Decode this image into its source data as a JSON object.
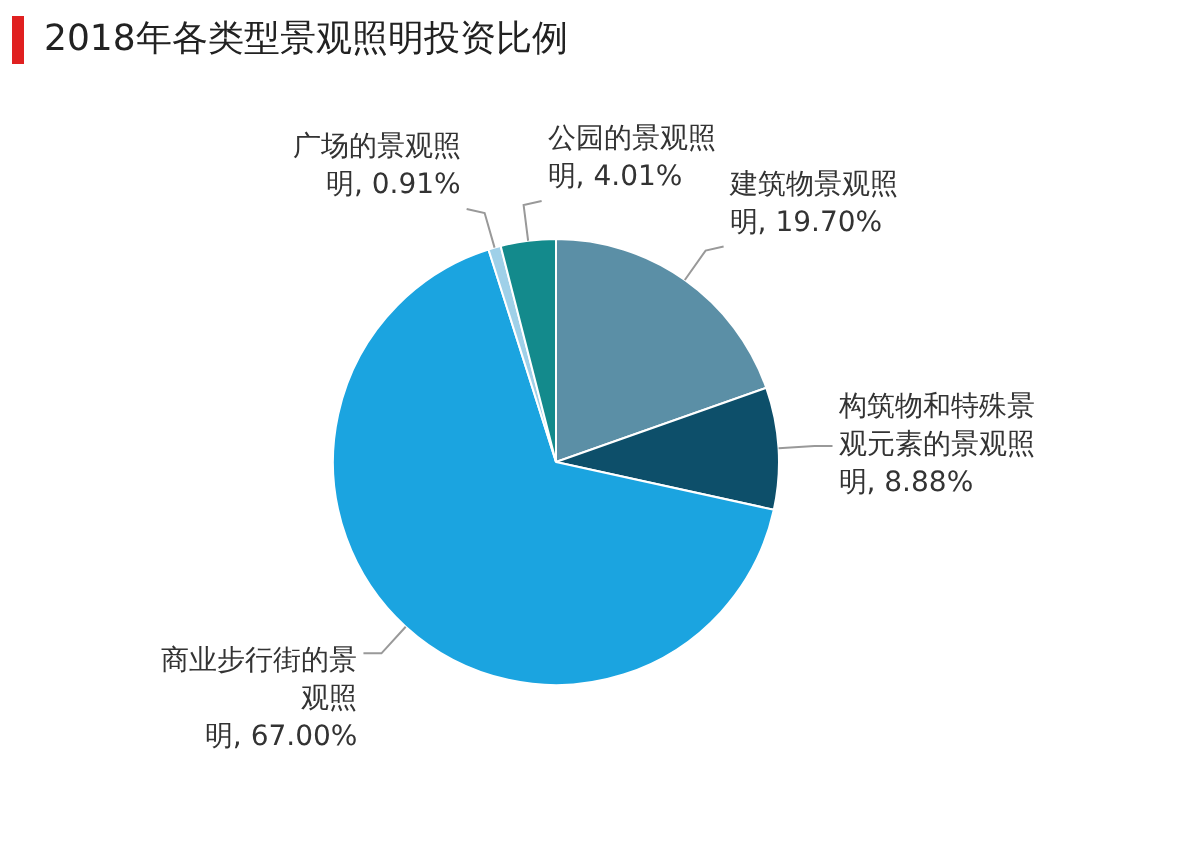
{
  "chart_data": {
    "type": "pie",
    "title": "2018年各类型景观照明投资比例",
    "categories": [
      "建筑物景观照明",
      "构筑物和特殊景观元素的景观照明",
      "商业步行街的景观照明",
      "广场的景观照明",
      "公园的景观照明"
    ],
    "values": [
      19.7,
      8.88,
      67.0,
      0.91,
      4.01
    ],
    "value_labels": [
      "19.70%",
      "8.88%",
      "67.00%",
      "0.91%",
      "4.01%"
    ],
    "colors": [
      "#5b8fa6",
      "#0d4f6a",
      "#1ba4e0",
      "#9fd0e8",
      "#138a8c"
    ],
    "legend": false
  }
}
